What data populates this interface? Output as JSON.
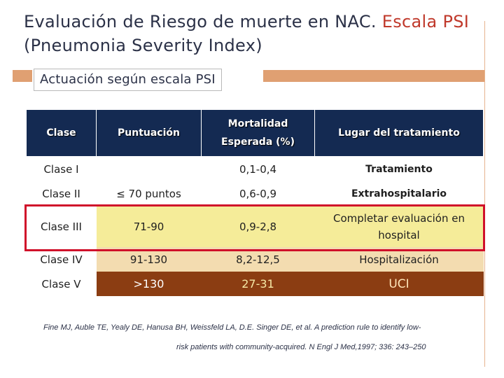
{
  "title": {
    "part1": "Evaluación de Riesgo de muerte en NAC. ",
    "part2": "Escala PSI",
    "part3": "(Pneumonia Severity Index)"
  },
  "subtitle": "Actuación según escala PSI",
  "table": {
    "headers": {
      "clase": "Clase",
      "puntuacion": "Puntuación",
      "mortalidad_1": "Mortalidad",
      "mortalidad_2": "Esperada (%)",
      "lugar": "Lugar del tratamiento"
    },
    "rows": [
      {
        "clase": "Clase I",
        "puntuacion": "",
        "mortalidad": "0,1-0,4"
      },
      {
        "clase": "Clase II",
        "puntuacion": "≤ 70 puntos",
        "mortalidad": "0,6-0,9"
      },
      {
        "clase": "Clase III",
        "puntuacion": "71-90",
        "mortalidad": "0,9-2,8",
        "lugar": "Completar evaluación en hospital"
      },
      {
        "clase": "Clase IV",
        "puntuacion": "91-130",
        "mortalidad": "8,2-12,5",
        "lugar": "Hospitalización"
      },
      {
        "clase": "Clase V",
        "puntuacion": ">130",
        "mortalidad": "27-31",
        "lugar": "UCI"
      }
    ],
    "lugar_merged_1": "Tratamiento",
    "lugar_merged_2": "Extrahospitalario"
  },
  "reference": {
    "line1": "Fine MJ, Auble TE, Yealy DE, Hanusa BH, Weissfeld LA, D.E. Singer DE, et al. A prediction rule to identify low-",
    "line2": "risk patients with community-acquired. N Engl J Med,1997; 336: 243–250"
  },
  "colors": {
    "header_bg": "#142a52",
    "class3_bg": "#f5ec99",
    "class4_bg": "#f3dcb0",
    "class5_bg": "#8b3d12",
    "highlight_border": "#d0102a",
    "title_accent": "#c0392b"
  }
}
